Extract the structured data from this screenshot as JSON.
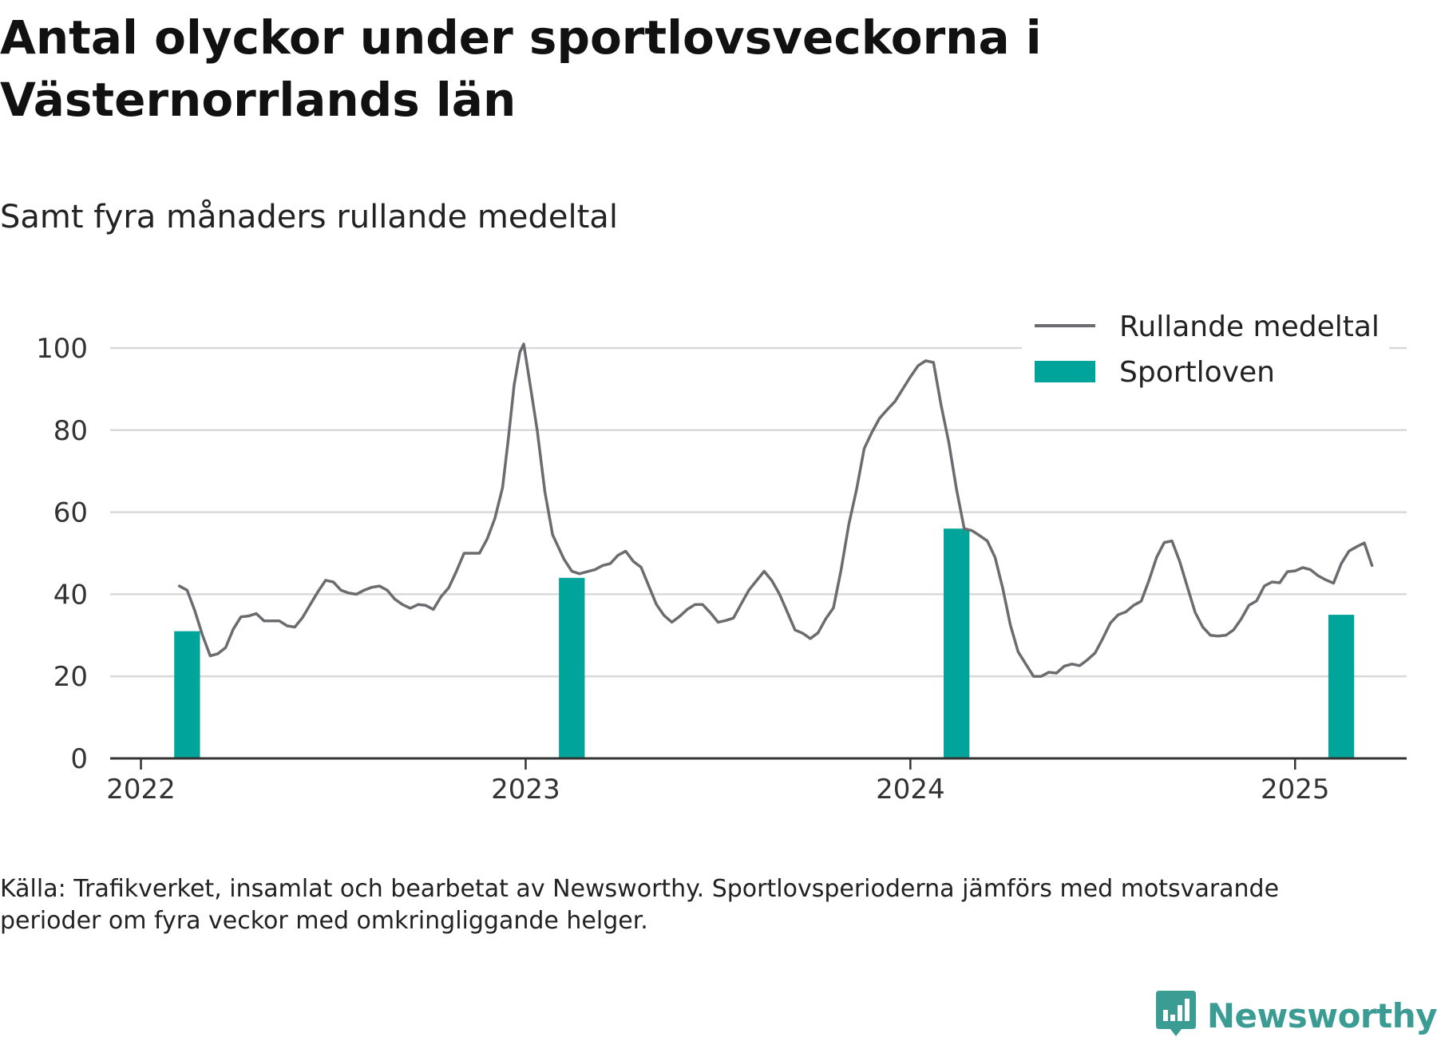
{
  "title": "Antal olyckor under sportlovsveckorna i Västernorrlands län",
  "subtitle": "Samt fyra månaders rullande medeltal",
  "source": "Källa: Trafikverket, insamlat och bearbetat av Newsworthy. Sportlovsperioderna jämförs med motsvarande perioder om fyra veckor med omkringliggande helger.",
  "brand": {
    "name": "Newsworthy",
    "logo_icon": "bar-chart-speech-bubble-icon"
  },
  "colors": {
    "line": "#6b6b70",
    "bars": "#00a49a",
    "grid": "#d9d9d9",
    "axis": "#333333",
    "brand": "#3a9c93"
  },
  "chart_data": {
    "type": "bar+line",
    "x_unit": "year (decimal)",
    "xlim": [
      2021.92,
      2025.29
    ],
    "ylim": [
      0,
      100
    ],
    "y_ticks": [
      0,
      20,
      40,
      60,
      80,
      100
    ],
    "x_ticks": [
      2022,
      2023,
      2024,
      2025
    ],
    "x_tick_labels": [
      "2022",
      "2023",
      "2024",
      "2025"
    ],
    "grid": "horizontal",
    "legend_position": "top-right",
    "legend": [
      {
        "label": "Rullande medeltal",
        "kind": "line"
      },
      {
        "label": "Sportloven",
        "kind": "bar"
      }
    ],
    "bars": {
      "name": "Sportloven",
      "width_years": 0.067,
      "x": [
        2022.12,
        2023.12,
        2024.12,
        2025.12
      ],
      "values": [
        31,
        44,
        56,
        35
      ]
    },
    "line": {
      "name": "Rullande medeltal",
      "points": [
        [
          2022.1,
          42
        ],
        [
          2022.12,
          41
        ],
        [
          2022.14,
          36
        ],
        [
          2022.16,
          30
        ],
        [
          2022.18,
          25
        ],
        [
          2022.2,
          25.5
        ],
        [
          2022.22,
          27
        ],
        [
          2022.24,
          31.5
        ],
        [
          2022.26,
          34.5
        ],
        [
          2022.28,
          34.7
        ],
        [
          2022.3,
          35.3
        ],
        [
          2022.32,
          33.5
        ],
        [
          2022.34,
          33.5
        ],
        [
          2022.36,
          33.5
        ],
        [
          2022.38,
          32.3
        ],
        [
          2022.4,
          32
        ],
        [
          2022.42,
          34.3
        ],
        [
          2022.44,
          37.5
        ],
        [
          2022.46,
          40.6
        ],
        [
          2022.48,
          43.4
        ],
        [
          2022.5,
          43
        ],
        [
          2022.52,
          41
        ],
        [
          2022.54,
          40.3
        ],
        [
          2022.56,
          40
        ],
        [
          2022.58,
          41
        ],
        [
          2022.6,
          41.7
        ],
        [
          2022.62,
          42
        ],
        [
          2022.64,
          41
        ],
        [
          2022.66,
          38.8
        ],
        [
          2022.68,
          37.5
        ],
        [
          2022.7,
          36.6
        ],
        [
          2022.72,
          37.5
        ],
        [
          2022.74,
          37.3
        ],
        [
          2022.76,
          36.3
        ],
        [
          2022.78,
          39.4
        ],
        [
          2022.8,
          41.6
        ],
        [
          2022.82,
          45.6
        ],
        [
          2022.84,
          50
        ],
        [
          2022.86,
          50
        ],
        [
          2022.88,
          50
        ],
        [
          2022.9,
          53.5
        ],
        [
          2022.92,
          58.5
        ],
        [
          2022.94,
          66
        ],
        [
          2022.955,
          78
        ],
        [
          2022.97,
          91
        ],
        [
          2022.985,
          99
        ],
        [
          2022.995,
          101
        ],
        [
          2023.01,
          92
        ],
        [
          2023.03,
          80
        ],
        [
          2023.05,
          65
        ],
        [
          2023.07,
          54.5
        ],
        [
          2023.1,
          48.5
        ],
        [
          2023.12,
          45.6
        ],
        [
          2023.14,
          45
        ],
        [
          2023.16,
          45.5
        ],
        [
          2023.18,
          46
        ],
        [
          2023.2,
          47
        ],
        [
          2023.22,
          47.5
        ],
        [
          2023.24,
          49.5
        ],
        [
          2023.26,
          50.5
        ],
        [
          2023.28,
          48
        ],
        [
          2023.3,
          46.6
        ],
        [
          2023.32,
          42
        ],
        [
          2023.34,
          37.5
        ],
        [
          2023.36,
          34.8
        ],
        [
          2023.38,
          33.2
        ],
        [
          2023.4,
          34.6
        ],
        [
          2023.42,
          36.3
        ],
        [
          2023.44,
          37.5
        ],
        [
          2023.46,
          37.5
        ],
        [
          2023.48,
          35.5
        ],
        [
          2023.5,
          33.2
        ],
        [
          2023.52,
          33.6
        ],
        [
          2023.54,
          34.2
        ],
        [
          2023.56,
          37.6
        ],
        [
          2023.58,
          41
        ],
        [
          2023.6,
          43.3
        ],
        [
          2023.62,
          45.6
        ],
        [
          2023.64,
          43.3
        ],
        [
          2023.66,
          40
        ],
        [
          2023.68,
          35.7
        ],
        [
          2023.7,
          31.3
        ],
        [
          2023.72,
          30.5
        ],
        [
          2023.74,
          29.2
        ],
        [
          2023.76,
          30.6
        ],
        [
          2023.78,
          34
        ],
        [
          2023.8,
          36.7
        ],
        [
          2023.82,
          46
        ],
        [
          2023.84,
          57
        ],
        [
          2023.86,
          65.5
        ],
        [
          2023.88,
          75.5
        ],
        [
          2023.9,
          79.5
        ],
        [
          2023.92,
          82.9
        ],
        [
          2023.94,
          85
        ],
        [
          2023.96,
          87
        ],
        [
          2023.98,
          90
        ],
        [
          2024.0,
          93
        ],
        [
          2024.02,
          95.7
        ],
        [
          2024.04,
          96.9
        ],
        [
          2024.06,
          96.5
        ],
        [
          2024.08,
          86
        ],
        [
          2024.1,
          77
        ],
        [
          2024.12,
          65.5
        ],
        [
          2024.14,
          56
        ],
        [
          2024.16,
          55.5
        ],
        [
          2024.18,
          54.3
        ],
        [
          2024.2,
          53
        ],
        [
          2024.22,
          49
        ],
        [
          2024.24,
          41.5
        ],
        [
          2024.26,
          32.5
        ],
        [
          2024.28,
          26
        ],
        [
          2024.3,
          23
        ],
        [
          2024.32,
          20
        ],
        [
          2024.34,
          20
        ],
        [
          2024.36,
          21
        ],
        [
          2024.38,
          20.8
        ],
        [
          2024.4,
          22.5
        ],
        [
          2024.42,
          23
        ],
        [
          2024.44,
          22.6
        ],
        [
          2024.46,
          24
        ],
        [
          2024.48,
          25.7
        ],
        [
          2024.5,
          29.2
        ],
        [
          2024.52,
          33
        ],
        [
          2024.54,
          35
        ],
        [
          2024.56,
          35.7
        ],
        [
          2024.58,
          37.3
        ],
        [
          2024.6,
          38.3
        ],
        [
          2024.62,
          43.3
        ],
        [
          2024.64,
          49
        ],
        [
          2024.66,
          52.6
        ],
        [
          2024.68,
          53
        ],
        [
          2024.7,
          48
        ],
        [
          2024.72,
          41.8
        ],
        [
          2024.74,
          35.6
        ],
        [
          2024.76,
          32
        ],
        [
          2024.78,
          30
        ],
        [
          2024.8,
          29.8
        ],
        [
          2024.82,
          30
        ],
        [
          2024.84,
          31.3
        ],
        [
          2024.86,
          34
        ],
        [
          2024.88,
          37.3
        ],
        [
          2024.9,
          38.4
        ],
        [
          2024.92,
          42
        ],
        [
          2024.94,
          43
        ],
        [
          2024.96,
          42.8
        ],
        [
          2024.98,
          45.5
        ],
        [
          2025.0,
          45.7
        ],
        [
          2025.02,
          46.5
        ],
        [
          2025.04,
          46
        ],
        [
          2025.06,
          44.5
        ],
        [
          2025.08,
          43.5
        ],
        [
          2025.1,
          42.7
        ],
        [
          2025.12,
          47.5
        ],
        [
          2025.14,
          50.5
        ],
        [
          2025.16,
          51.6
        ],
        [
          2025.18,
          52.5
        ],
        [
          2025.2,
          47
        ]
      ]
    }
  }
}
